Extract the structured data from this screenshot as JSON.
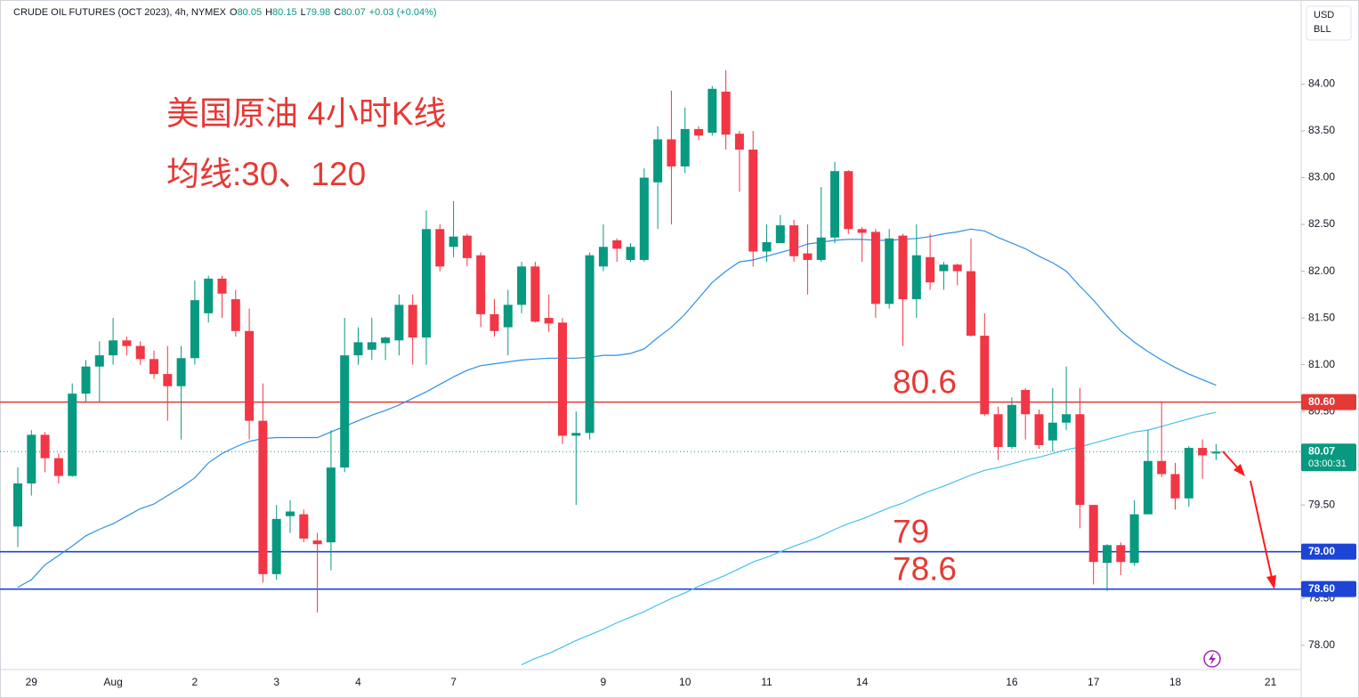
{
  "chart_data": {
    "type": "candlestick",
    "title": "美国原油 4小时K线",
    "subtitle": "均线:30、120",
    "symbol": "CRUDE OIL FUTURES (OCT 2023), 4h, NYMEX",
    "ohlc_labels": [
      "O",
      "H",
      "L",
      "C"
    ],
    "ohlc_values": [
      80.05,
      80.15,
      79.98,
      80.07
    ],
    "change": "+0.03 (+0.04%)",
    "currency": [
      "USD",
      "BLL"
    ],
    "countdown": "03:00:31",
    "up_color": "#089981",
    "down_color": "#f23645",
    "categories": [
      null,
      "29",
      null,
      null,
      null,
      null,
      null,
      "Aug",
      null,
      null,
      null,
      null,
      null,
      "2",
      null,
      null,
      null,
      null,
      null,
      "3",
      null,
      null,
      null,
      null,
      null,
      "4",
      null,
      null,
      null,
      null,
      null,
      null,
      "7",
      null,
      null,
      null,
      null,
      null,
      null,
      null,
      null,
      null,
      null,
      "9",
      null,
      null,
      null,
      null,
      null,
      "10",
      null,
      null,
      null,
      null,
      null,
      "11",
      null,
      null,
      null,
      null,
      null,
      null,
      "14",
      null,
      null,
      null,
      null,
      null,
      null,
      null,
      null,
      null,
      null,
      "16",
      null,
      null,
      null,
      null,
      null,
      "17",
      null,
      null,
      null,
      null,
      null,
      "18",
      null,
      null,
      null,
      null,
      null,
      null,
      "21",
      null,
      null
    ],
    "open": [
      79.27,
      79.73,
      80.25,
      80.0,
      79.81,
      80.69,
      80.98,
      81.1,
      81.26,
      81.2,
      81.06,
      80.9,
      80.77,
      81.07,
      81.55,
      81.92,
      81.7,
      81.36,
      80.4,
      78.76,
      79.38,
      79.4,
      79.12,
      79.1,
      79.9,
      81.1,
      81.16,
      81.23,
      81.26,
      81.64,
      81.29,
      82.45,
      82.26,
      82.38,
      82.17,
      81.54,
      81.4,
      81.64,
      82.05,
      81.5,
      81.45,
      80.24,
      80.27,
      82.05,
      82.33,
      82.12,
      82.12,
      82.95,
      83.41,
      83.12,
      83.52,
      83.48,
      83.92,
      83.47,
      83.3,
      82.21,
      82.3,
      82.49,
      82.19,
      82.12,
      82.36,
      83.07,
      82.45,
      82.42,
      81.65,
      82.38,
      81.7,
      82.15,
      82.0,
      82.07,
      82.0,
      81.31,
      80.47,
      80.12,
      80.73,
      80.47,
      80.19,
      80.38,
      80.47,
      79.5,
      78.88,
      79.07,
      78.88,
      79.4,
      79.97,
      79.83,
      79.57,
      80.11,
      80.05,
      null,
      null,
      null,
      null,
      null,
      null
    ],
    "high": [
      79.9,
      80.3,
      80.28,
      80.05,
      80.8,
      81.05,
      81.25,
      81.5,
      81.3,
      81.25,
      81.15,
      81.2,
      81.2,
      81.9,
      81.95,
      81.95,
      81.8,
      81.6,
      80.8,
      79.5,
      79.55,
      79.45,
      79.2,
      80.3,
      81.5,
      81.4,
      81.5,
      81.3,
      81.75,
      81.75,
      82.65,
      82.5,
      82.75,
      82.4,
      82.2,
      81.7,
      81.8,
      82.1,
      82.1,
      81.75,
      81.5,
      80.5,
      82.2,
      82.5,
      82.35,
      82.3,
      83.1,
      83.55,
      83.93,
      83.75,
      83.55,
      83.98,
      84.15,
      83.5,
      83.5,
      82.5,
      82.6,
      82.55,
      82.5,
      82.9,
      83.17,
      83.08,
      82.47,
      82.45,
      82.45,
      82.4,
      82.5,
      82.4,
      82.1,
      82.08,
      82.35,
      81.55,
      80.55,
      80.65,
      80.75,
      80.52,
      80.75,
      80.98,
      80.75,
      79.5,
      79.08,
      79.1,
      79.55,
      80.3,
      80.6,
      79.95,
      80.13,
      80.2,
      80.15,
      null,
      null,
      null,
      null,
      null,
      null
    ],
    "low": [
      79.05,
      79.6,
      79.85,
      79.73,
      79.8,
      80.6,
      80.6,
      81.0,
      81.1,
      81.0,
      80.85,
      80.4,
      80.2,
      81.0,
      81.45,
      81.5,
      81.3,
      80.2,
      78.67,
      78.7,
      79.2,
      79.1,
      78.35,
      78.8,
      79.85,
      81.0,
      81.05,
      81.05,
      81.1,
      81.0,
      81.0,
      82.0,
      82.15,
      82.05,
      81.4,
      81.3,
      81.1,
      81.55,
      81.45,
      81.35,
      80.15,
      79.5,
      80.2,
      82.0,
      82.1,
      82.1,
      82.1,
      82.45,
      82.5,
      83.05,
      83.4,
      83.45,
      83.3,
      82.85,
      82.05,
      82.1,
      82.35,
      82.1,
      81.75,
      82.1,
      82.3,
      82.4,
      82.1,
      81.5,
      81.6,
      81.2,
      81.5,
      81.8,
      81.8,
      81.85,
      81.3,
      80.45,
      79.98,
      80.1,
      80.2,
      80.1,
      80.07,
      80.3,
      79.25,
      78.65,
      78.58,
      78.75,
      78.85,
      79.4,
      79.8,
      79.45,
      79.48,
      79.78,
      79.98,
      null,
      null,
      null,
      null,
      null,
      null
    ],
    "close": [
      79.73,
      80.25,
      80.0,
      79.81,
      80.69,
      80.98,
      81.1,
      81.26,
      81.2,
      81.06,
      80.9,
      80.77,
      81.07,
      81.69,
      81.92,
      81.76,
      81.36,
      80.4,
      78.76,
      79.35,
      79.43,
      79.14,
      79.08,
      79.9,
      81.1,
      81.24,
      81.24,
      81.29,
      81.64,
      81.29,
      82.45,
      82.05,
      82.37,
      82.14,
      81.54,
      81.36,
      81.64,
      82.05,
      81.46,
      81.44,
      80.24,
      80.27,
      82.17,
      82.26,
      82.24,
      82.26,
      83.0,
      83.41,
      83.12,
      83.52,
      83.45,
      83.95,
      83.46,
      83.3,
      82.21,
      82.31,
      82.49,
      82.16,
      82.12,
      82.36,
      83.07,
      82.45,
      82.41,
      81.65,
      82.35,
      81.7,
      82.17,
      81.88,
      82.07,
      82.0,
      81.31,
      80.47,
      80.12,
      80.57,
      80.47,
      80.14,
      80.38,
      80.47,
      79.5,
      78.89,
      79.07,
      78.89,
      79.4,
      79.97,
      79.83,
      79.57,
      80.11,
      80.03,
      80.07,
      null,
      null,
      null,
      null,
      null,
      null
    ],
    "series": [
      {
        "color": "#2f8fe6",
        "values": [
          78.62,
          78.7,
          78.86,
          78.96,
          79.06,
          79.17,
          79.24,
          79.3,
          79.38,
          79.46,
          79.51,
          79.6,
          79.69,
          79.79,
          79.95,
          80.05,
          80.12,
          80.18,
          80.21,
          80.22,
          80.22,
          80.22,
          80.22,
          80.28,
          80.34,
          80.4,
          80.46,
          80.51,
          80.57,
          80.64,
          80.71,
          80.79,
          80.87,
          80.94,
          80.99,
          81.01,
          81.03,
          81.05,
          81.06,
          81.07,
          81.07,
          81.07,
          81.08,
          81.1,
          81.1,
          81.12,
          81.17,
          81.29,
          81.4,
          81.54,
          81.71,
          81.88,
          82.0,
          82.1,
          82.12,
          82.16,
          82.2,
          82.24,
          82.29,
          82.31,
          82.33,
          82.34,
          82.34,
          82.33,
          82.33,
          82.34,
          82.35,
          82.37,
          82.4,
          82.42,
          82.45,
          82.43,
          82.36,
          82.3,
          82.24,
          82.16,
          82.09,
          82.0,
          81.84,
          81.69,
          81.52,
          81.36,
          81.24,
          81.14,
          81.05,
          80.97,
          80.9,
          80.84,
          80.78,
          null,
          null,
          null,
          null,
          null,
          null
        ]
      },
      {
        "color": "#45c1ec",
        "values": [
          null,
          null,
          null,
          null,
          null,
          null,
          null,
          null,
          null,
          null,
          null,
          null,
          null,
          null,
          null,
          null,
          null,
          null,
          null,
          null,
          null,
          null,
          null,
          null,
          null,
          null,
          null,
          null,
          null,
          null,
          null,
          null,
          null,
          null,
          null,
          null,
          null,
          77.79,
          77.86,
          77.91,
          77.98,
          78.05,
          78.11,
          78.17,
          78.24,
          78.3,
          78.36,
          78.43,
          78.5,
          78.56,
          78.63,
          78.69,
          78.75,
          78.82,
          78.89,
          78.94,
          79.0,
          79.06,
          79.11,
          79.17,
          79.24,
          79.3,
          79.35,
          79.41,
          79.47,
          79.52,
          79.59,
          79.65,
          79.7,
          79.76,
          79.82,
          79.87,
          79.9,
          79.94,
          79.98,
          80.01,
          80.05,
          80.09,
          80.12,
          80.16,
          80.2,
          80.24,
          80.28,
          80.3,
          80.34,
          80.38,
          80.42,
          80.46,
          80.49,
          null,
          null,
          null,
          null,
          null,
          null
        ]
      }
    ],
    "levels": [
      {
        "value": 80.6,
        "label": "80.60",
        "annotation": "80.6",
        "color": "#e53935"
      },
      {
        "value": 79,
        "label": "79.00",
        "annotation": "79",
        "color": "#1c44d6"
      },
      {
        "value": 78.6,
        "label": "78.60",
        "annotation": "78.6",
        "color": "#1c44d6"
      }
    ],
    "ylim": [
      77.74,
      84.9
    ],
    "yticks": [
      {
        "value": 78,
        "label": "78.00"
      },
      {
        "value": 78.5,
        "label": "78.50"
      },
      {
        "value": 79.5,
        "label": "79.50"
      },
      {
        "value": 80.5,
        "label": "80.50"
      },
      {
        "value": 81,
        "label": "81.00"
      },
      {
        "value": 81.5,
        "label": "81.50"
      },
      {
        "value": 82,
        "label": "82.00"
      },
      {
        "value": 82.5,
        "label": "82.50"
      },
      {
        "value": 83,
        "label": "83.00"
      },
      {
        "value": 83.5,
        "label": "83.50"
      },
      {
        "value": 84,
        "label": "84.00"
      }
    ],
    "grid": false
  }
}
